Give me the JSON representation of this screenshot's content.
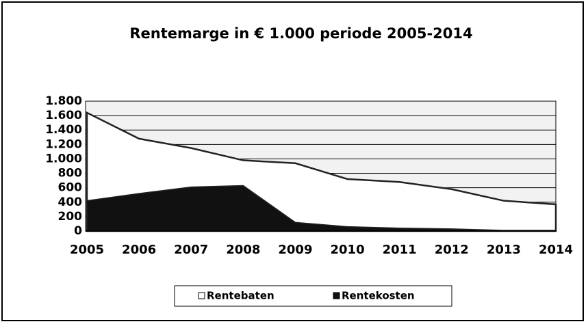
{
  "chart_data": {
    "type": "area",
    "title": "Rentemarge in € 1.000 periode 2005-2014",
    "categories": [
      "2005",
      "2006",
      "2007",
      "2008",
      "2009",
      "2010",
      "2011",
      "2012",
      "2013",
      "2014"
    ],
    "series": [
      {
        "name": "Rentebaten",
        "color": "#ffffff",
        "values": [
          1640,
          1280,
          1150,
          980,
          940,
          720,
          680,
          580,
          420,
          370
        ]
      },
      {
        "name": "Rentekosten",
        "color": "#111111",
        "values": [
          420,
          520,
          610,
          630,
          120,
          60,
          40,
          30,
          10,
          10
        ]
      }
    ],
    "ylim": [
      0,
      1800
    ],
    "yticks": [
      0,
      200,
      400,
      600,
      800,
      {
        "value": 1000,
        "label": "1.000"
      },
      {
        "value": 1200,
        "label": "1.200"
      },
      {
        "value": 1400,
        "label": "1.400"
      },
      {
        "value": 1600,
        "label": "1.600"
      },
      {
        "value": 1800,
        "label": "1.800"
      }
    ],
    "grid": true,
    "legend": "bottom"
  }
}
